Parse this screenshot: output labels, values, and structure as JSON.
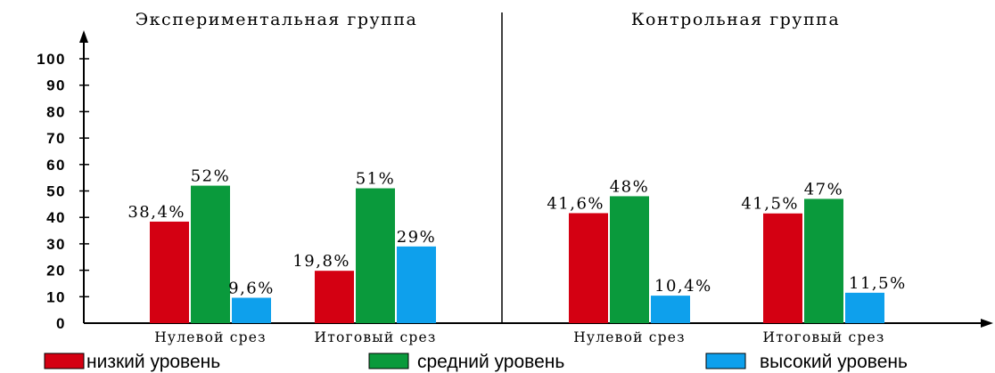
{
  "chart_data": {
    "type": "bar",
    "y_ticks": [
      0,
      10,
      20,
      30,
      40,
      50,
      60,
      70,
      80,
      90,
      100
    ],
    "ylim": [
      0,
      100
    ],
    "legend_position": "bottom",
    "grid": false,
    "colors": {
      "low": "#d40012",
      "mid": "#0a9a3c",
      "high": "#0ea0ec"
    },
    "legend": [
      {
        "key": "low",
        "label": "низкий уровень"
      },
      {
        "key": "mid",
        "label": "средний уровень"
      },
      {
        "key": "high",
        "label": "высокий уровень"
      }
    ],
    "panels": [
      {
        "title": "Экспериментальная группа",
        "groups": [
          {
            "label": "Нулевой срез",
            "bars": [
              {
                "key": "low",
                "value": 38.4,
                "label": "38,4%"
              },
              {
                "key": "mid",
                "value": 52,
                "label": "52%"
              },
              {
                "key": "high",
                "value": 9.6,
                "label": "9,6%"
              }
            ]
          },
          {
            "label": "Итоговый срез",
            "bars": [
              {
                "key": "low",
                "value": 19.8,
                "label": "19,8%"
              },
              {
                "key": "mid",
                "value": 51,
                "label": "51%"
              },
              {
                "key": "high",
                "value": 29,
                "label": "29%"
              }
            ]
          }
        ]
      },
      {
        "title": "Контрольная группа",
        "groups": [
          {
            "label": "Нулевой срез",
            "bars": [
              {
                "key": "low",
                "value": 41.6,
                "label": "41,6%"
              },
              {
                "key": "mid",
                "value": 48,
                "label": "48%"
              },
              {
                "key": "high",
                "value": 10.4,
                "label": "10,4%"
              }
            ]
          },
          {
            "label": "Итоговый срез",
            "bars": [
              {
                "key": "low",
                "value": 41.5,
                "label": "41,5%"
              },
              {
                "key": "mid",
                "value": 47,
                "label": "47%"
              },
              {
                "key": "high",
                "value": 11.5,
                "label": "11,5%"
              }
            ]
          }
        ]
      }
    ]
  }
}
